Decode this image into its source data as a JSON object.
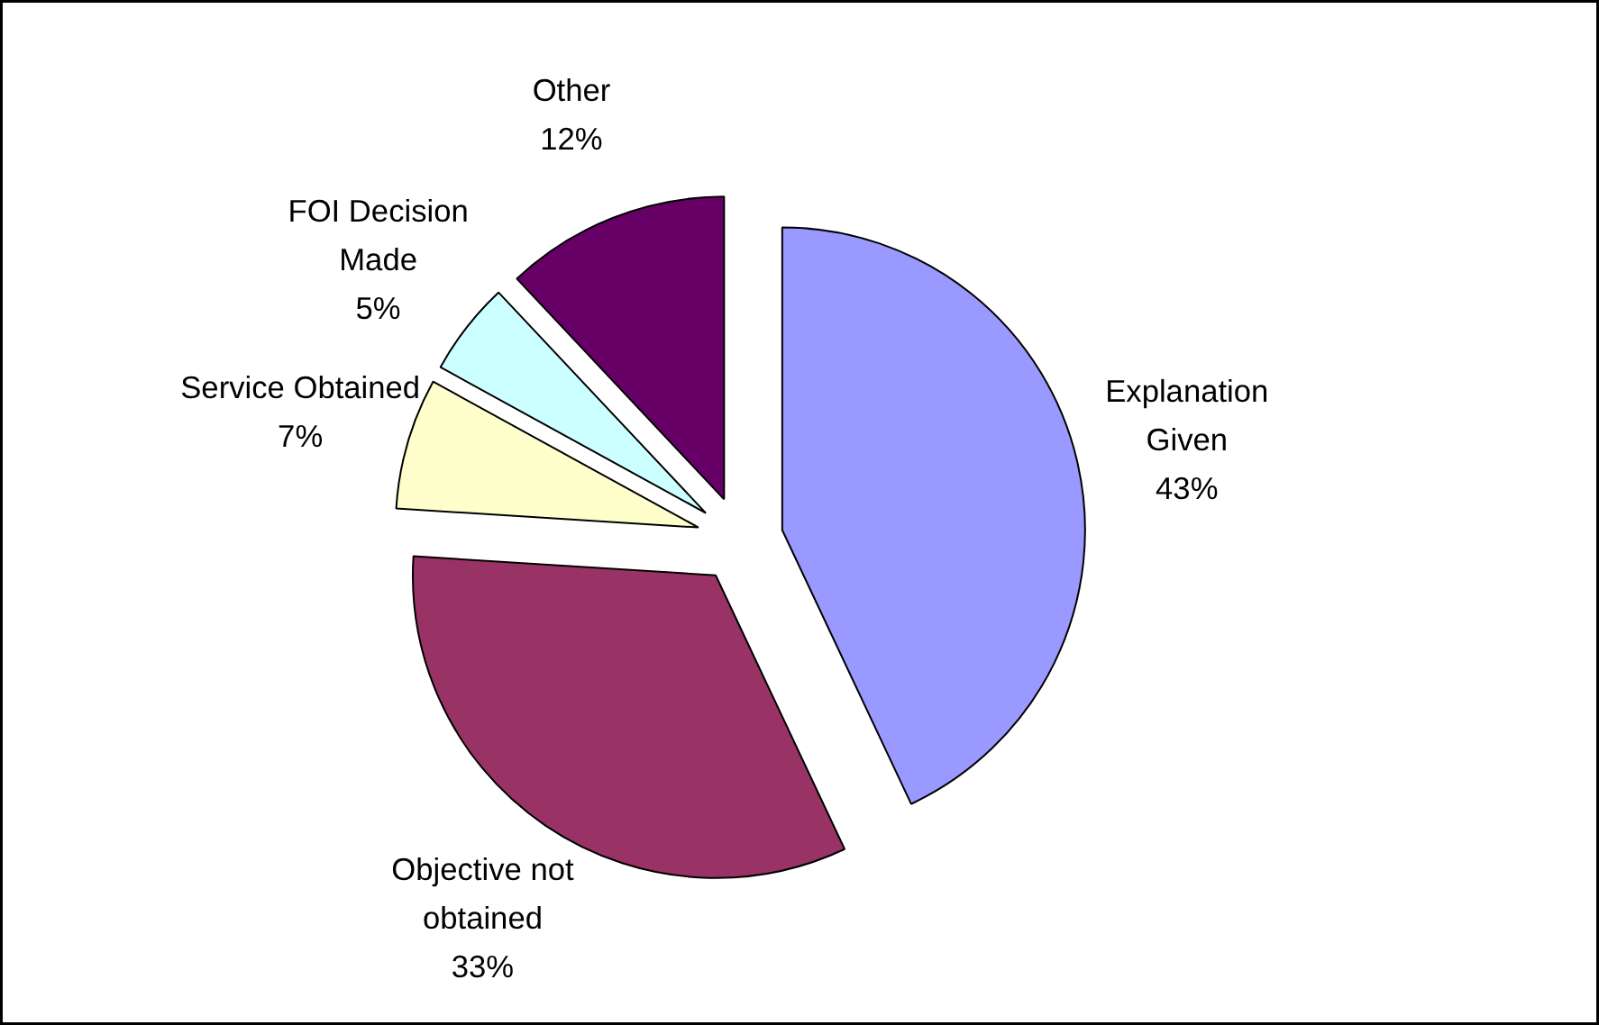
{
  "chart_data": {
    "type": "pie",
    "categories": [
      "Explanation Given",
      "Objective not obtained",
      "Service Obtained",
      "FOI Decision Made",
      "Other"
    ],
    "values": [
      43,
      33,
      7,
      5,
      12
    ],
    "colors": [
      "#9999ff",
      "#993366",
      "#ffffcc",
      "#ccffff",
      "#660066"
    ],
    "value_labels": [
      "43%",
      "33%",
      "7%",
      "5%",
      "12%"
    ]
  }
}
